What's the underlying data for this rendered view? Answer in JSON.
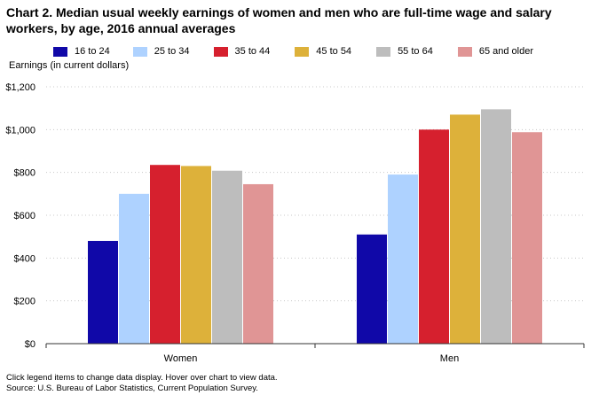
{
  "title": "Chart 2. Median usual weekly earnings of women and men who are full-time wage and salary workers, by age, 2016 annual averages",
  "ylabel": "Earnings (in current dollars)",
  "footnotes": {
    "note": "Click legend items to change data display. Hover over chart to view data.",
    "source": "Source: U.S. Bureau of Labor Statistics, Current Population Survey."
  },
  "colors": {
    "grid": "#c8c8c8",
    "axis": "#333333"
  },
  "chart_data": {
    "type": "bar",
    "title": "Chart 2. Median usual weekly earnings of women and men who are full-time wage and salary workers, by age, 2016 annual averages",
    "xlabel": "",
    "ylabel": "Earnings (in current dollars)",
    "categories": [
      "Women",
      "Men"
    ],
    "ylim": [
      0,
      1200
    ],
    "yticks": [
      "$0",
      "$200",
      "$400",
      "$600",
      "$800",
      "$1,000",
      "$1,200"
    ],
    "grid": true,
    "legend_position": "top",
    "series": [
      {
        "name": "16 to 24",
        "color": "#1008a8",
        "values": [
          480,
          510
        ]
      },
      {
        "name": "25 to 34",
        "color": "#aed2ff",
        "values": [
          700,
          790
        ]
      },
      {
        "name": "35 to 44",
        "color": "#d6202e",
        "values": [
          835,
          1000
        ]
      },
      {
        "name": "45 to 54",
        "color": "#ddb13a",
        "values": [
          830,
          1070
        ]
      },
      {
        "name": "55 to 64",
        "color": "#bdbdbd",
        "values": [
          808,
          1095
        ]
      },
      {
        "name": "65 and older",
        "color": "#e09595",
        "values": [
          745,
          988
        ]
      }
    ]
  }
}
